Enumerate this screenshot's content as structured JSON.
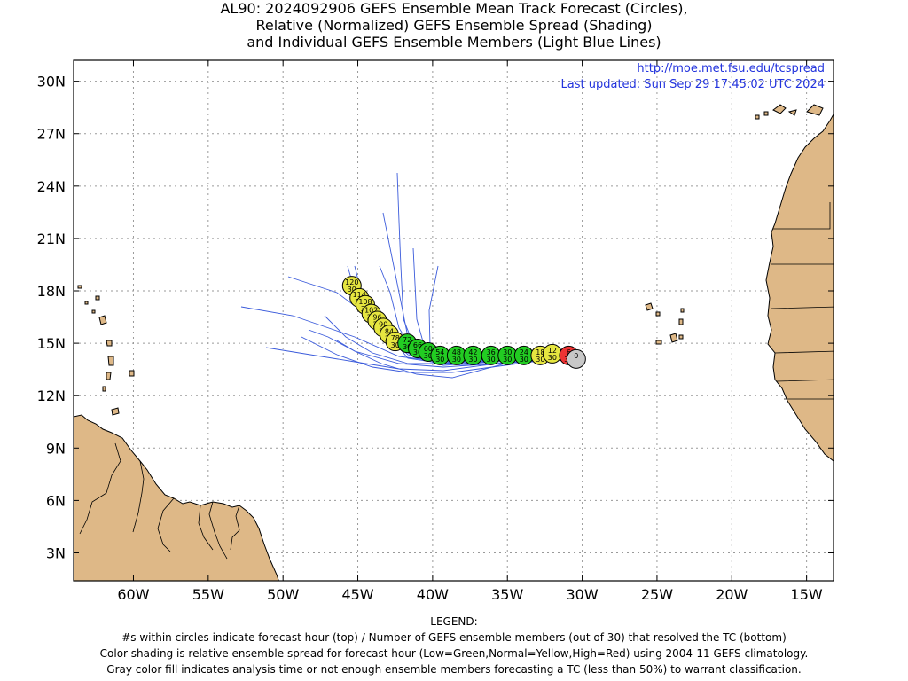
{
  "title": {
    "line1": "AL90: 2024092906 GEFS Ensemble Mean Track Forecast (Circles),",
    "line2": "Relative (Normalized) GEFS Ensemble Spread (Shading)",
    "line3": "and Individual GEFS Ensemble Members (Light Blue Lines)"
  },
  "header_links": {
    "url": "http://moe.met.fsu.edu/tcspread",
    "updated": "Last updated: Sun Sep 29 17:45:02 UTC 2024"
  },
  "colors": {
    "green": "#22cc22",
    "yellow": "#e6e640",
    "red": "#ee3333",
    "gray": "#c8c8c8",
    "land": "#deb887",
    "member_lines": "#3b5bdb",
    "header_text": "#2233dd"
  },
  "axes": {
    "lat_labels": [
      "30N",
      "27N",
      "24N",
      "21N",
      "18N",
      "15N",
      "12N",
      "9N",
      "6N",
      "3N"
    ],
    "lon_labels": [
      "60W",
      "55W",
      "50W",
      "45W",
      "40W",
      "35W",
      "30W",
      "25W",
      "20W",
      "15W"
    ],
    "lat_values": [
      30,
      27,
      24,
      21,
      18,
      15,
      12,
      9,
      6,
      3
    ],
    "lon_values": [
      -60,
      -55,
      -50,
      -45,
      -40,
      -35,
      -30,
      -25,
      -20,
      -15
    ],
    "lon_range": [
      -64,
      -13.2
    ],
    "lat_range": [
      1.4,
      31.2
    ],
    "grid": true
  },
  "track": [
    {
      "hour": "0",
      "members": "",
      "lon": -30.4,
      "lat": 14.1,
      "spread": "gray"
    },
    {
      "hour": "6",
      "members": "30",
      "lon": -30.9,
      "lat": 14.3,
      "spread": "red"
    },
    {
      "hour": "12",
      "members": "30",
      "lon": -32.0,
      "lat": 14.4,
      "spread": "yellow"
    },
    {
      "hour": "18",
      "members": "30",
      "lon": -32.8,
      "lat": 14.3,
      "spread": "yellow"
    },
    {
      "hour": "24",
      "members": "30",
      "lon": -33.9,
      "lat": 14.3,
      "spread": "green"
    },
    {
      "hour": "30",
      "members": "30",
      "lon": -35.0,
      "lat": 14.3,
      "spread": "green"
    },
    {
      "hour": "36",
      "members": "30",
      "lon": -36.1,
      "lat": 14.3,
      "spread": "green"
    },
    {
      "hour": "42",
      "members": "30",
      "lon": -37.3,
      "lat": 14.3,
      "spread": "green"
    },
    {
      "hour": "48",
      "members": "30",
      "lon": -38.4,
      "lat": 14.3,
      "spread": "green"
    },
    {
      "hour": "54",
      "members": "30",
      "lon": -39.5,
      "lat": 14.3,
      "spread": "green"
    },
    {
      "hour": "60",
      "members": "30",
      "lon": -40.3,
      "lat": 14.5,
      "spread": "green"
    },
    {
      "hour": "66",
      "members": "30",
      "lon": -41.0,
      "lat": 14.7,
      "spread": "green"
    },
    {
      "hour": "72",
      "members": "30",
      "lon": -41.7,
      "lat": 15.0,
      "spread": "green"
    },
    {
      "hour": "78",
      "members": "30",
      "lon": -42.5,
      "lat": 15.1,
      "spread": "yellow"
    },
    {
      "hour": "84",
      "members": "30",
      "lon": -42.9,
      "lat": 15.5,
      "spread": "yellow"
    },
    {
      "hour": "90",
      "members": "30",
      "lon": -43.3,
      "lat": 15.9,
      "spread": "yellow"
    },
    {
      "hour": "96",
      "members": "30",
      "lon": -43.7,
      "lat": 16.3,
      "spread": "yellow"
    },
    {
      "hour": "102",
      "members": "30",
      "lon": -44.1,
      "lat": 16.7,
      "spread": "yellow"
    },
    {
      "hour": "108",
      "members": "30",
      "lon": -44.5,
      "lat": 17.2,
      "spread": "yellow"
    },
    {
      "hour": "114",
      "members": "30",
      "lon": -44.9,
      "lat": 17.6,
      "spread": "yellow"
    },
    {
      "hour": "120",
      "members": "30",
      "lon": -45.4,
      "lat": 18.3,
      "spread": "yellow"
    }
  ],
  "legend": {
    "heading": "LEGEND:",
    "line1": "#s within circles indicate forecast hour (top) / Number of GEFS ensemble members (out of 30) that resolved the TC (bottom)",
    "line2": "Color shading is relative ensemble spread for forecast hour (Low=Green,Normal=Yellow,High=Red) using 2004-11 GEFS climatology.",
    "line3": "Gray color fill indicates analysis time or not enough ensemble members forecasting a TC (less than 50%) to warrant classification."
  }
}
